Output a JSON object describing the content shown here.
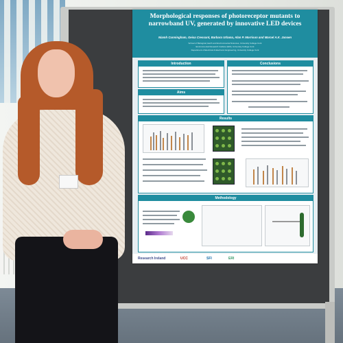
{
  "scene": {
    "description_colors": {
      "board": "#3b3d3f",
      "poster_header": "#1f8da0",
      "wall": "#e9ebe8"
    }
  },
  "poster": {
    "title": "Morphological responses of photoreceptor mutants to narrowband UV, generated by innovative LED devices",
    "authors": "Niamh Cunningham, Geisa Cressant, Barbara Urbana, Alan P. Morrison and Marcel A.K. Jansen",
    "affiliations": [
      "School of Biological, Earth and Environmental Sciences, University College Cork",
      "Environmental Research Institute (ERI), University College Cork",
      "Department of Electrical & Electronic Engineering, University College Cork"
    ],
    "sections": {
      "introduction": "Introduction",
      "aims": "Aims",
      "conclusions": "Conclusions",
      "results": "Results",
      "methodology": "Methodology"
    },
    "logos": [
      "Research Ireland",
      "UCC",
      "SFI",
      "ERI"
    ]
  }
}
